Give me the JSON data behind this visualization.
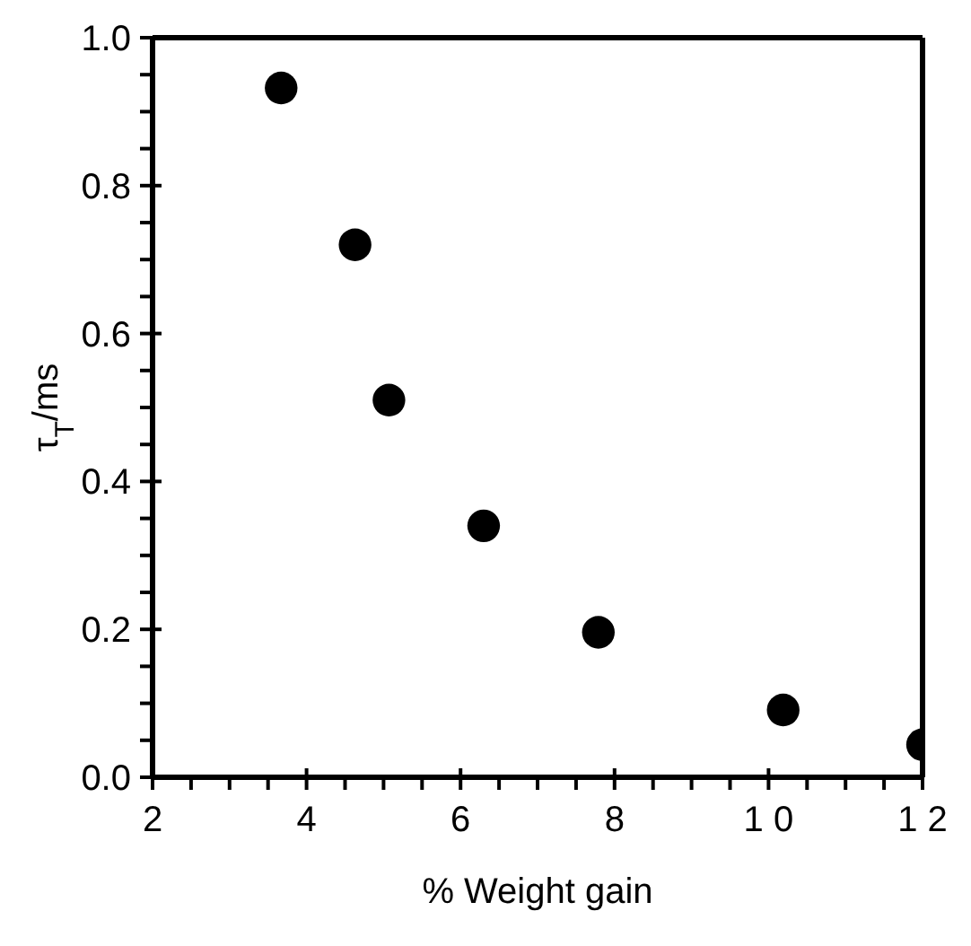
{
  "chart_data": {
    "type": "scatter",
    "xlabel": "% Weight gain",
    "ylabel": "τ$_{T}$/ms",
    "x": [
      3.67,
      4.63,
      5.07,
      6.3,
      7.79,
      10.19,
      12.0
    ],
    "series": [
      {
        "color": "#000000",
        "values": [
          0.932,
          0.72,
          0.51,
          0.34,
          0.196,
          0.091,
          0.044
        ]
      }
    ],
    "xlim": [
      2,
      12
    ],
    "xticks": [
      2,
      {
        "value": 2.5,
        "label": null
      },
      {
        "value": 3,
        "label": null
      },
      {
        "value": 3.5,
        "label": null
      },
      4,
      {
        "value": 4.5,
        "label": null
      },
      {
        "value": 5,
        "label": null
      },
      {
        "value": 5.5,
        "label": null
      },
      6,
      {
        "value": 6.5,
        "label": null
      },
      {
        "value": 7,
        "label": null
      },
      {
        "value": 7.5,
        "label": null
      },
      8,
      {
        "value": 8.5,
        "label": null
      },
      {
        "value": 9,
        "label": null
      },
      {
        "value": 9.5,
        "label": null
      },
      {
        "value": 10,
        "label": "1 0"
      },
      {
        "value": 10.5,
        "label": null
      },
      {
        "value": 11,
        "label": null
      },
      {
        "value": 11.5,
        "label": null
      },
      {
        "value": 12,
        "label": "1 2"
      }
    ],
    "ylim": [
      0,
      1
    ],
    "yticks": [
      {
        "value": 0,
        "label": "0.0"
      },
      {
        "value": 0.05,
        "label": null
      },
      {
        "value": 0.1,
        "label": null
      },
      {
        "value": 0.15,
        "label": null
      },
      0.2,
      {
        "value": 0.25,
        "label": null
      },
      {
        "value": 0.3,
        "label": null
      },
      {
        "value": 0.35,
        "label": null
      },
      0.4,
      {
        "value": 0.45,
        "label": null
      },
      {
        "value": 0.5,
        "label": null
      },
      {
        "value": 0.55,
        "label": null
      },
      0.6,
      {
        "value": 0.65,
        "label": null
      },
      {
        "value": 0.7,
        "label": null
      },
      {
        "value": 0.75,
        "label": null
      },
      0.8,
      {
        "value": 0.85,
        "label": null
      },
      {
        "value": 0.9,
        "label": null
      },
      {
        "value": 0.95,
        "label": null
      },
      {
        "value": 1,
        "label": "1.0"
      }
    ],
    "marker": "circle"
  }
}
